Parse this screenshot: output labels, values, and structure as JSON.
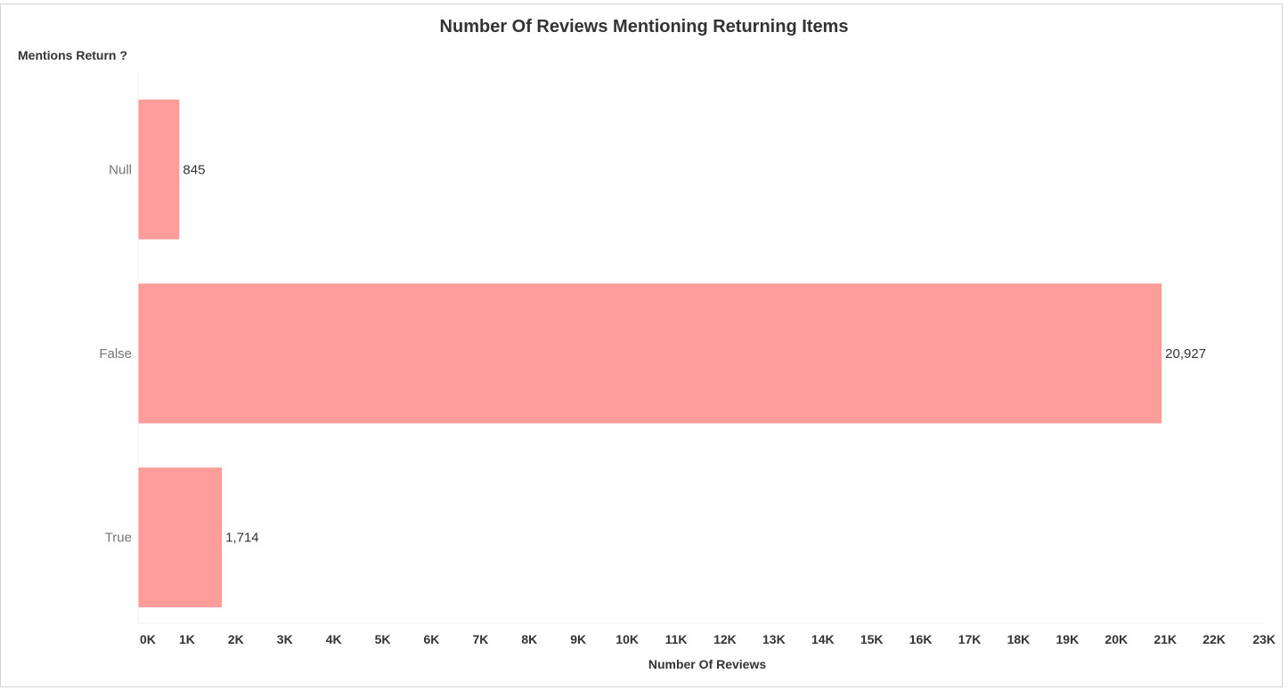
{
  "chart_data": {
    "type": "bar",
    "orientation": "horizontal",
    "title": "Number Of Reviews Mentioning Returning Items",
    "dimension_header": "Mentions Return ?",
    "categories": [
      "Null",
      "False",
      "True"
    ],
    "values": [
      845,
      20927,
      1714
    ],
    "value_labels": [
      "845",
      "20,927",
      "1,714"
    ],
    "xlabel": "Number Of Reviews",
    "ylabel": "",
    "xlim": [
      0,
      23000
    ],
    "x_ticks": [
      "0K",
      "1K",
      "2K",
      "3K",
      "4K",
      "5K",
      "6K",
      "7K",
      "8K",
      "9K",
      "10K",
      "11K",
      "12K",
      "13K",
      "14K",
      "15K",
      "16K",
      "17K",
      "18K",
      "19K",
      "20K",
      "21K",
      "22K",
      "23K"
    ],
    "grid": false,
    "bar_color": "#ff9d9a"
  }
}
